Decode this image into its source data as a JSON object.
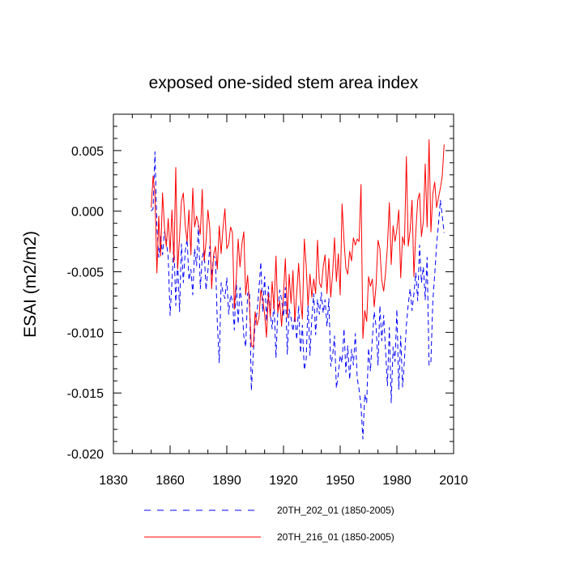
{
  "chart_data": {
    "type": "line",
    "title": "exposed one-sided stem area index",
    "xlabel": "",
    "ylabel": "ESAI  (m2/m2)",
    "xlim": [
      1830,
      2010
    ],
    "ylim": [
      -0.02,
      0.008
    ],
    "x_ticks": [
      1830,
      1860,
      1890,
      1920,
      1950,
      1980,
      2010
    ],
    "x_tick_labels": [
      "1830",
      "1860",
      "1890",
      "1920",
      "1950",
      "1980",
      "2010"
    ],
    "y_ticks": [
      -0.02,
      -0.015,
      -0.01,
      -0.005,
      0.0,
      0.005
    ],
    "y_tick_labels": [
      "-0.020",
      "-0.015",
      "-0.010",
      "-0.005",
      "0.000",
      "0.005"
    ],
    "x_start": 1850,
    "series": [
      {
        "name": "20TH_202_01 (1850-2005)",
        "color": "#0000ff",
        "style": "dashed",
        "values": [
          0.0,
          0.0002,
          0.0049,
          -0.0013,
          -0.0038,
          -0.0021,
          -0.0036,
          -0.0017,
          -0.0025,
          -0.0038,
          -0.0086,
          -0.0058,
          -0.0026,
          -0.0078,
          -0.0041,
          -0.0083,
          -0.0027,
          -0.0059,
          -0.0033,
          -0.0023,
          -0.0057,
          -0.0048,
          -0.0069,
          -0.0031,
          -0.0045,
          -0.0011,
          -0.0064,
          -0.0038,
          -0.0032,
          -0.0065,
          -0.0049,
          -0.0029,
          -0.0053,
          -0.0037,
          -0.0039,
          -0.0092,
          -0.0125,
          -0.0059,
          -0.0067,
          -0.0072,
          -0.0055,
          -0.0085,
          -0.0069,
          -0.0074,
          -0.0098,
          -0.0057,
          -0.0093,
          -0.0063,
          -0.0078,
          -0.0103,
          -0.0112,
          -0.0068,
          -0.0066,
          -0.0148,
          -0.0118,
          -0.0092,
          -0.0084,
          -0.0064,
          -0.0042,
          -0.0083,
          -0.0054,
          -0.0091,
          -0.0062,
          -0.0085,
          -0.0097,
          -0.0074,
          -0.0121,
          -0.0082,
          -0.0065,
          -0.0073,
          -0.0087,
          -0.0063,
          -0.0118,
          -0.0081,
          -0.0088,
          -0.0099,
          -0.0086,
          -0.0106,
          -0.0078,
          -0.0117,
          -0.0094,
          -0.0131,
          -0.0122,
          -0.0076,
          -0.0119,
          -0.0088,
          -0.0068,
          -0.0102,
          -0.0073,
          -0.0085,
          -0.0067,
          -0.0084,
          -0.0073,
          -0.0095,
          -0.0072,
          -0.0128,
          -0.0119,
          -0.0103,
          -0.0146,
          -0.0134,
          -0.0119,
          -0.0125,
          -0.0097,
          -0.0133,
          -0.0111,
          -0.0139,
          -0.0114,
          -0.0127,
          -0.0101,
          -0.0138,
          -0.0147,
          -0.0161,
          -0.0188,
          -0.0151,
          -0.0158,
          -0.0113,
          -0.0132,
          -0.0105,
          -0.0083,
          -0.0095,
          -0.0127,
          -0.0078,
          -0.0107,
          -0.0086,
          -0.0115,
          -0.0144,
          -0.0096,
          -0.0158,
          -0.0112,
          -0.0124,
          -0.0081,
          -0.0147,
          -0.0103,
          -0.0145,
          -0.0123,
          -0.0094,
          -0.0077,
          -0.0064,
          -0.0082,
          -0.0068,
          -0.0051,
          -0.0074,
          -0.0028,
          -0.0059,
          -0.0046,
          -0.0073,
          -0.0038,
          -0.0127,
          -0.0124,
          -0.0075,
          -0.0052,
          -0.0028,
          -0.0011,
          0.0009,
          -0.0004,
          -0.0018
        ]
      },
      {
        "name": "20TH_216_01 (1850-2005)",
        "color": "#ff0000",
        "style": "solid",
        "values": [
          0.0003,
          0.0029,
          0.0014,
          -0.0051,
          -0.0004,
          -0.0037,
          0.0015,
          -0.0013,
          -0.0029,
          -0.0006,
          -0.0034,
          0.0001,
          -0.0042,
          0.0036,
          -0.0048,
          -0.0021,
          0.0008,
          0.0015,
          -0.0012,
          -0.0025,
          0.0001,
          -0.0036,
          0.0019,
          -0.0013,
          -0.0004,
          -0.0011,
          -0.0019,
          0.0018,
          -0.0041,
          -0.0026,
          0.0001,
          -0.0014,
          -0.0064,
          -0.0036,
          -0.0029,
          -0.0048,
          -0.0012,
          -0.0035,
          -0.0014,
          0.0002,
          -0.0031,
          -0.0027,
          -0.0013,
          -0.0018,
          -0.0081,
          -0.0056,
          -0.0023,
          -0.0046,
          -0.0027,
          -0.0017,
          -0.0069,
          -0.0053,
          -0.0078,
          -0.0111,
          -0.0112,
          -0.0083,
          -0.0094,
          -0.0088,
          -0.0065,
          -0.0072,
          -0.0085,
          -0.0104,
          -0.0068,
          -0.0087,
          -0.0058,
          -0.0081,
          -0.0037,
          -0.0084,
          -0.0074,
          -0.0095,
          -0.0068,
          -0.0039,
          -0.0088,
          -0.0052,
          -0.0076,
          -0.0049,
          -0.0091,
          -0.0068,
          -0.0043,
          -0.0072,
          -0.0089,
          -0.0023,
          -0.0045,
          -0.0078,
          -0.0052,
          -0.0071,
          -0.0056,
          -0.0068,
          -0.0024,
          -0.0059,
          -0.0063,
          -0.0046,
          -0.0036,
          -0.0068,
          -0.0039,
          -0.0071,
          -0.0051,
          -0.0022,
          -0.0058,
          -0.0035,
          -0.0069,
          0.0006,
          -0.0024,
          -0.0047,
          -0.0052,
          -0.0033,
          -0.0041,
          -0.0022,
          -0.0028,
          -0.0023,
          -0.0025,
          0.0022,
          -0.0105,
          -0.0082,
          -0.0091,
          -0.0054,
          -0.0062,
          -0.0056,
          -0.0079,
          -0.0061,
          -0.0024,
          -0.0031,
          -0.0057,
          -0.0066,
          -0.0051,
          -0.0029,
          0.0007,
          -0.0044,
          -0.0012,
          -0.0025,
          -0.0015,
          0.0001,
          -0.0055,
          -0.0021,
          -0.0028,
          0.0045,
          -0.0029,
          -0.0016,
          0.0009,
          -0.0054,
          -0.0018,
          0.0009,
          0.0015,
          -0.0021,
          -0.0008,
          0.0039,
          -0.0013,
          0.0059,
          -0.0017,
          0.0014,
          0.0024,
          0.0003,
          0.0011,
          0.0019,
          0.0029,
          0.0055
        ]
      }
    ],
    "legend": [
      {
        "label": "20TH_202_01 (1850-2005)",
        "color": "#0000ff",
        "style": "dashed"
      },
      {
        "label": "20TH_216_01 (1850-2005)",
        "color": "#ff0000",
        "style": "solid"
      }
    ]
  }
}
